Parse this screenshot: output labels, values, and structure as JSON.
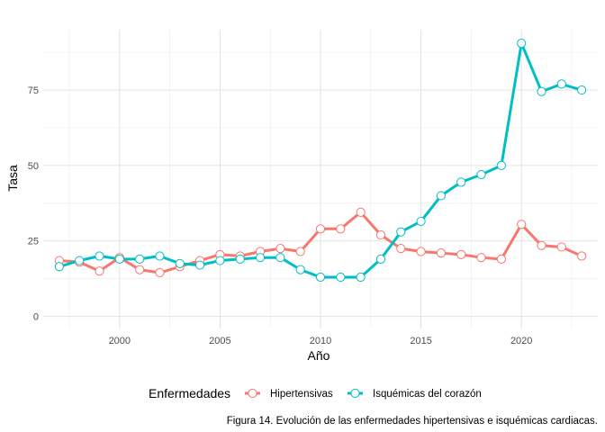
{
  "chart_data": {
    "type": "line",
    "title": "",
    "xlabel": "Año",
    "ylabel": "Tasa",
    "xlim": [
      1996.2,
      2023.8
    ],
    "ylim": [
      -4,
      95
    ],
    "x_ticks": [
      2000,
      2005,
      2010,
      2015,
      2020
    ],
    "x_tick_labels": [
      "2000",
      "2005",
      "2010",
      "2015",
      "2020"
    ],
    "y_ticks": [
      0,
      25,
      50,
      75
    ],
    "y_tick_labels": [
      "0",
      "25",
      "50",
      "75"
    ],
    "grid": true,
    "legend": {
      "title": "Enfermedades",
      "position": "bottom"
    },
    "caption": "Figura 14. Evolución de las enfermedades hipertensivas e isquémicas cardiacas.",
    "x": [
      1997,
      1998,
      1999,
      2000,
      2001,
      2002,
      2003,
      2004,
      2005,
      2006,
      2007,
      2008,
      2009,
      2010,
      2011,
      2012,
      2013,
      2014,
      2015,
      2016,
      2017,
      2018,
      2019,
      2020,
      2021,
      2022,
      2023
    ],
    "series": [
      {
        "name": "Hipertensivas",
        "color": "#F8766D",
        "values": [
          18.5,
          18,
          15,
          19.5,
          15.5,
          14.5,
          16.5,
          18.5,
          20.5,
          20,
          21.5,
          22.5,
          21.5,
          29,
          29,
          34.5,
          27,
          22.5,
          21.5,
          21,
          20.5,
          19.5,
          19,
          30.5,
          23.5,
          23,
          20
        ]
      },
      {
        "name": "Isquémicas del corazón",
        "color": "#00BFC4",
        "values": [
          16.5,
          18.5,
          20,
          19,
          19,
          20,
          17.5,
          17,
          18.5,
          19,
          19.5,
          19.5,
          15.5,
          13,
          13,
          13,
          19,
          28,
          31.5,
          40,
          44.5,
          47,
          50,
          90.5,
          74.5,
          77,
          75
        ]
      }
    ]
  }
}
